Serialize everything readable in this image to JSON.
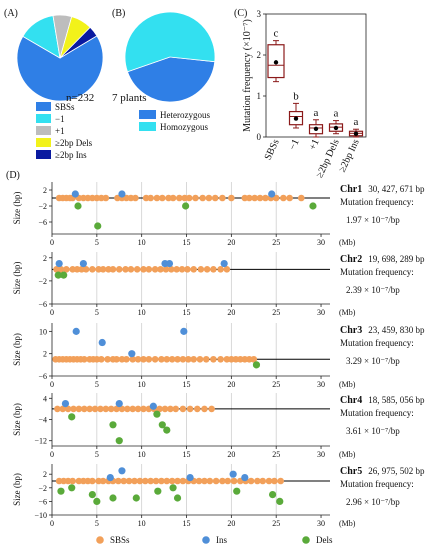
{
  "panel_a": {
    "label": "(A)",
    "n_label": "n=232",
    "legend": [
      "SBSs",
      "−1",
      "+1",
      "≥2bp Dels",
      "≥2bp Ins"
    ],
    "colors": [
      "#2f7fe6",
      "#33e0f0",
      "#bdbdbd",
      "#f2f21a",
      "#0a1aa0"
    ]
  },
  "panel_b": {
    "label": "(B)",
    "plants_label": "7 plants",
    "legend": [
      "Heterozygous",
      "Homozygous"
    ],
    "colors": [
      "#2f7fe6",
      "#33e0f0"
    ]
  },
  "panel_c": {
    "label": "(C)"
  },
  "panel_d": {
    "label": "(D)",
    "x_unit": "(Mb)",
    "ylabel": "Size (bp)",
    "unit_suffix": "bp",
    "mutation_freq_label": "Mutation frequency:",
    "legend": [
      "SBSs",
      "Ins",
      "Dels"
    ],
    "colors": {
      "SBSs": "#f2a05a",
      "Ins": "#4f8fd8",
      "Dels": "#5aaa3a"
    }
  },
  "chart_data": [
    {
      "type": "pie",
      "categories": [
        "SBSs",
        "−1",
        "+1",
        "≥2bp Dels",
        "≥2bp Ins"
      ],
      "values": [
        67,
        14,
        7,
        8,
        4
      ]
    },
    {
      "type": "pie",
      "categories": [
        "Heterozygous",
        "Homozygous"
      ],
      "values": [
        43,
        57
      ]
    },
    {
      "type": "box",
      "ylabel": "Mutation frequency (×10⁻⁷)",
      "categories": [
        "SBSs",
        "−1",
        "+1",
        "≥2bp Dels",
        "≥2bp Ins"
      ],
      "yticks": [
        0,
        1,
        2,
        3
      ],
      "ylim": [
        0,
        3
      ],
      "letters": [
        "c",
        "b",
        "a",
        "a",
        "a"
      ],
      "boxes": [
        {
          "min": 1.35,
          "q1": 1.45,
          "median": 1.75,
          "q3": 2.25,
          "max": 2.35,
          "mean": 1.82
        },
        {
          "min": 0.22,
          "q1": 0.3,
          "median": 0.5,
          "q3": 0.62,
          "max": 0.82,
          "mean": 0.45
        },
        {
          "min": 0.0,
          "q1": 0.08,
          "median": 0.22,
          "q3": 0.3,
          "max": 0.42,
          "mean": 0.2
        },
        {
          "min": 0.08,
          "q1": 0.14,
          "median": 0.24,
          "q3": 0.32,
          "max": 0.4,
          "mean": 0.22
        },
        {
          "min": 0.0,
          "q1": 0.03,
          "median": 0.09,
          "q3": 0.14,
          "max": 0.19,
          "mean": 0.08
        }
      ]
    },
    {
      "type": "scatter",
      "chromosome": "Chr1",
      "length": "30, 427, 671",
      "freq": "1.97 × 10⁻⁷/bp",
      "yticks": [
        2,
        -2,
        -6
      ],
      "ylim": [
        -9,
        4
      ],
      "xticks": [
        0,
        5,
        10,
        15,
        20,
        25,
        30
      ],
      "xlim": [
        0,
        31
      ],
      "grid_x": [
        5,
        10,
        15,
        20,
        25
      ],
      "sbs": [
        0.8,
        1.2,
        1.6,
        2.0,
        2.3,
        3.0,
        3.5,
        4.0,
        4.5,
        5.0,
        5.5,
        6.0,
        7.3,
        7.8,
        8.3,
        8.8,
        9.3,
        10.5,
        11.0,
        11.7,
        12.3,
        13.0,
        13.5,
        14.2,
        14.8,
        15.3,
        16.0,
        16.8,
        17.5,
        18.2,
        19.0,
        20.0,
        21.5,
        22.0,
        22.6,
        23.2,
        23.8,
        24.4,
        25.0,
        25.8,
        26.5,
        27.8
      ],
      "ins": [
        [
          2.6,
          1
        ],
        [
          7.8,
          1
        ],
        [
          24.5,
          1
        ]
      ],
      "dels": [
        [
          2.9,
          -2
        ],
        [
          5.1,
          -7
        ],
        [
          14.9,
          -2
        ],
        [
          29.1,
          -2
        ]
      ]
    },
    {
      "type": "scatter",
      "chromosome": "Chr2",
      "length": "19, 698, 289",
      "freq": "2.39 × 10⁻⁷/bp",
      "yticks": [
        2,
        -2,
        -6
      ],
      "ylim": [
        -6,
        3
      ],
      "xticks": [
        0,
        5,
        10,
        15,
        20,
        25,
        30
      ],
      "xlim": [
        0,
        31
      ],
      "grid_x": [
        5,
        10,
        15,
        20,
        25
      ],
      "sbs": [
        0.5,
        1.0,
        1.6,
        2.3,
        2.8,
        3.3,
        3.8,
        4.5,
        5.2,
        5.7,
        6.3,
        6.8,
        7.5,
        8.2,
        8.8,
        9.5,
        10.2,
        10.8,
        11.5,
        12.1,
        12.7,
        13.3,
        13.9,
        14.5,
        15.1,
        15.8,
        16.6,
        17.3,
        18.0,
        18.8,
        19.5
      ],
      "ins": [
        [
          0.8,
          1
        ],
        [
          3.5,
          1
        ],
        [
          12.6,
          1
        ],
        [
          13.1,
          1
        ],
        [
          19.2,
          1
        ]
      ],
      "dels": [
        [
          0.7,
          -1
        ],
        [
          1.3,
          -1
        ]
      ]
    },
    {
      "type": "scatter",
      "chromosome": "Chr3",
      "length": "23, 459, 830",
      "freq": "3.29 × 10⁻⁷/bp",
      "yticks": [
        10,
        2,
        -6
      ],
      "ylim": [
        -6,
        13
      ],
      "xticks": [
        0,
        5,
        10,
        15,
        20,
        25,
        30
      ],
      "xlim": [
        0,
        31
      ],
      "grid_x": [
        5,
        10,
        15,
        20,
        25
      ],
      "sbs": [
        0.4,
        0.8,
        1.2,
        1.6,
        2.0,
        2.4,
        2.8,
        3.2,
        3.6,
        4.2,
        4.6,
        5.0,
        5.5,
        6.2,
        6.8,
        7.2,
        7.8,
        8.3,
        9.0,
        9.6,
        10.2,
        10.8,
        11.5,
        12.2,
        12.8,
        13.4,
        14.0,
        14.6,
        15.2,
        15.8,
        16.5,
        17.2,
        18.0,
        18.8,
        19.5,
        20.0,
        20.5,
        21.0,
        21.5,
        22.0,
        22.5
      ],
      "ins": [
        [
          2.7,
          10
        ],
        [
          5.6,
          6
        ],
        [
          8.9,
          2
        ],
        [
          14.7,
          10
        ]
      ],
      "dels": [
        [
          22.8,
          -2
        ]
      ]
    },
    {
      "type": "scatter",
      "chromosome": "Chr4",
      "length": "18, 585, 056",
      "freq": "3.61 × 10⁻⁷/bp",
      "yticks": [
        4,
        -4,
        -12
      ],
      "ylim": [
        -14,
        6
      ],
      "xticks": [
        0,
        5,
        10,
        15,
        20,
        25,
        30
      ],
      "xlim": [
        0,
        31
      ],
      "grid_x": [
        5,
        10,
        15,
        20,
        25
      ],
      "sbs": [
        0.6,
        1.2,
        1.8,
        2.4,
        3.0,
        3.6,
        4.2,
        4.8,
        5.4,
        6.0,
        6.6,
        7.2,
        7.8,
        8.4,
        9.0,
        9.6,
        10.2,
        10.8,
        11.4,
        12.0,
        12.6,
        13.2,
        13.8,
        14.6,
        15.4,
        16.2,
        17.0,
        17.8
      ],
      "ins": [
        [
          1.5,
          2
        ],
        [
          7.5,
          2
        ],
        [
          11.3,
          1
        ]
      ],
      "dels": [
        [
          2.2,
          -3
        ],
        [
          6.8,
          -6
        ],
        [
          7.5,
          -12
        ],
        [
          11.7,
          -2
        ],
        [
          12.3,
          -6
        ],
        [
          12.8,
          -8
        ]
      ]
    },
    {
      "type": "scatter",
      "chromosome": "Chr5",
      "length": "26, 975, 502",
      "freq": "2.96 × 10⁻⁷/bp",
      "yticks": [
        2,
        -2,
        -6,
        -10
      ],
      "ylim": [
        -10,
        5
      ],
      "xticks": [
        0,
        5,
        10,
        15,
        20,
        25,
        30
      ],
      "xlim": [
        0,
        31
      ],
      "grid_x": [
        5,
        10,
        15,
        20,
        25
      ],
      "sbs": [
        0.8,
        1.3,
        1.8,
        2.3,
        3.0,
        3.5,
        4.0,
        4.5,
        5.2,
        5.7,
        6.3,
        6.8,
        7.4,
        8.0,
        8.6,
        9.2,
        9.8,
        10.4,
        11.0,
        11.6,
        12.2,
        12.8,
        13.4,
        14.0,
        14.6,
        15.2,
        15.8,
        16.4,
        17.0,
        17.6,
        18.3,
        19.0,
        19.6,
        20.3,
        21.0,
        21.6,
        22.2,
        22.9,
        23.5,
        24.2,
        24.8,
        25.5
      ],
      "ins": [
        [
          6.5,
          1
        ],
        [
          7.8,
          3
        ],
        [
          15.4,
          1
        ],
        [
          20.2,
          2
        ],
        [
          21.5,
          1
        ]
      ],
      "dels": [
        [
          1.0,
          -3
        ],
        [
          2.2,
          -2
        ],
        [
          4.5,
          -4
        ],
        [
          5.0,
          -6
        ],
        [
          6.8,
          -5
        ],
        [
          9.4,
          -5
        ],
        [
          11.8,
          -3
        ],
        [
          13.5,
          -2
        ],
        [
          14.0,
          -5
        ],
        [
          20.6,
          -3
        ],
        [
          24.6,
          -4
        ],
        [
          25.4,
          -6
        ]
      ]
    }
  ]
}
